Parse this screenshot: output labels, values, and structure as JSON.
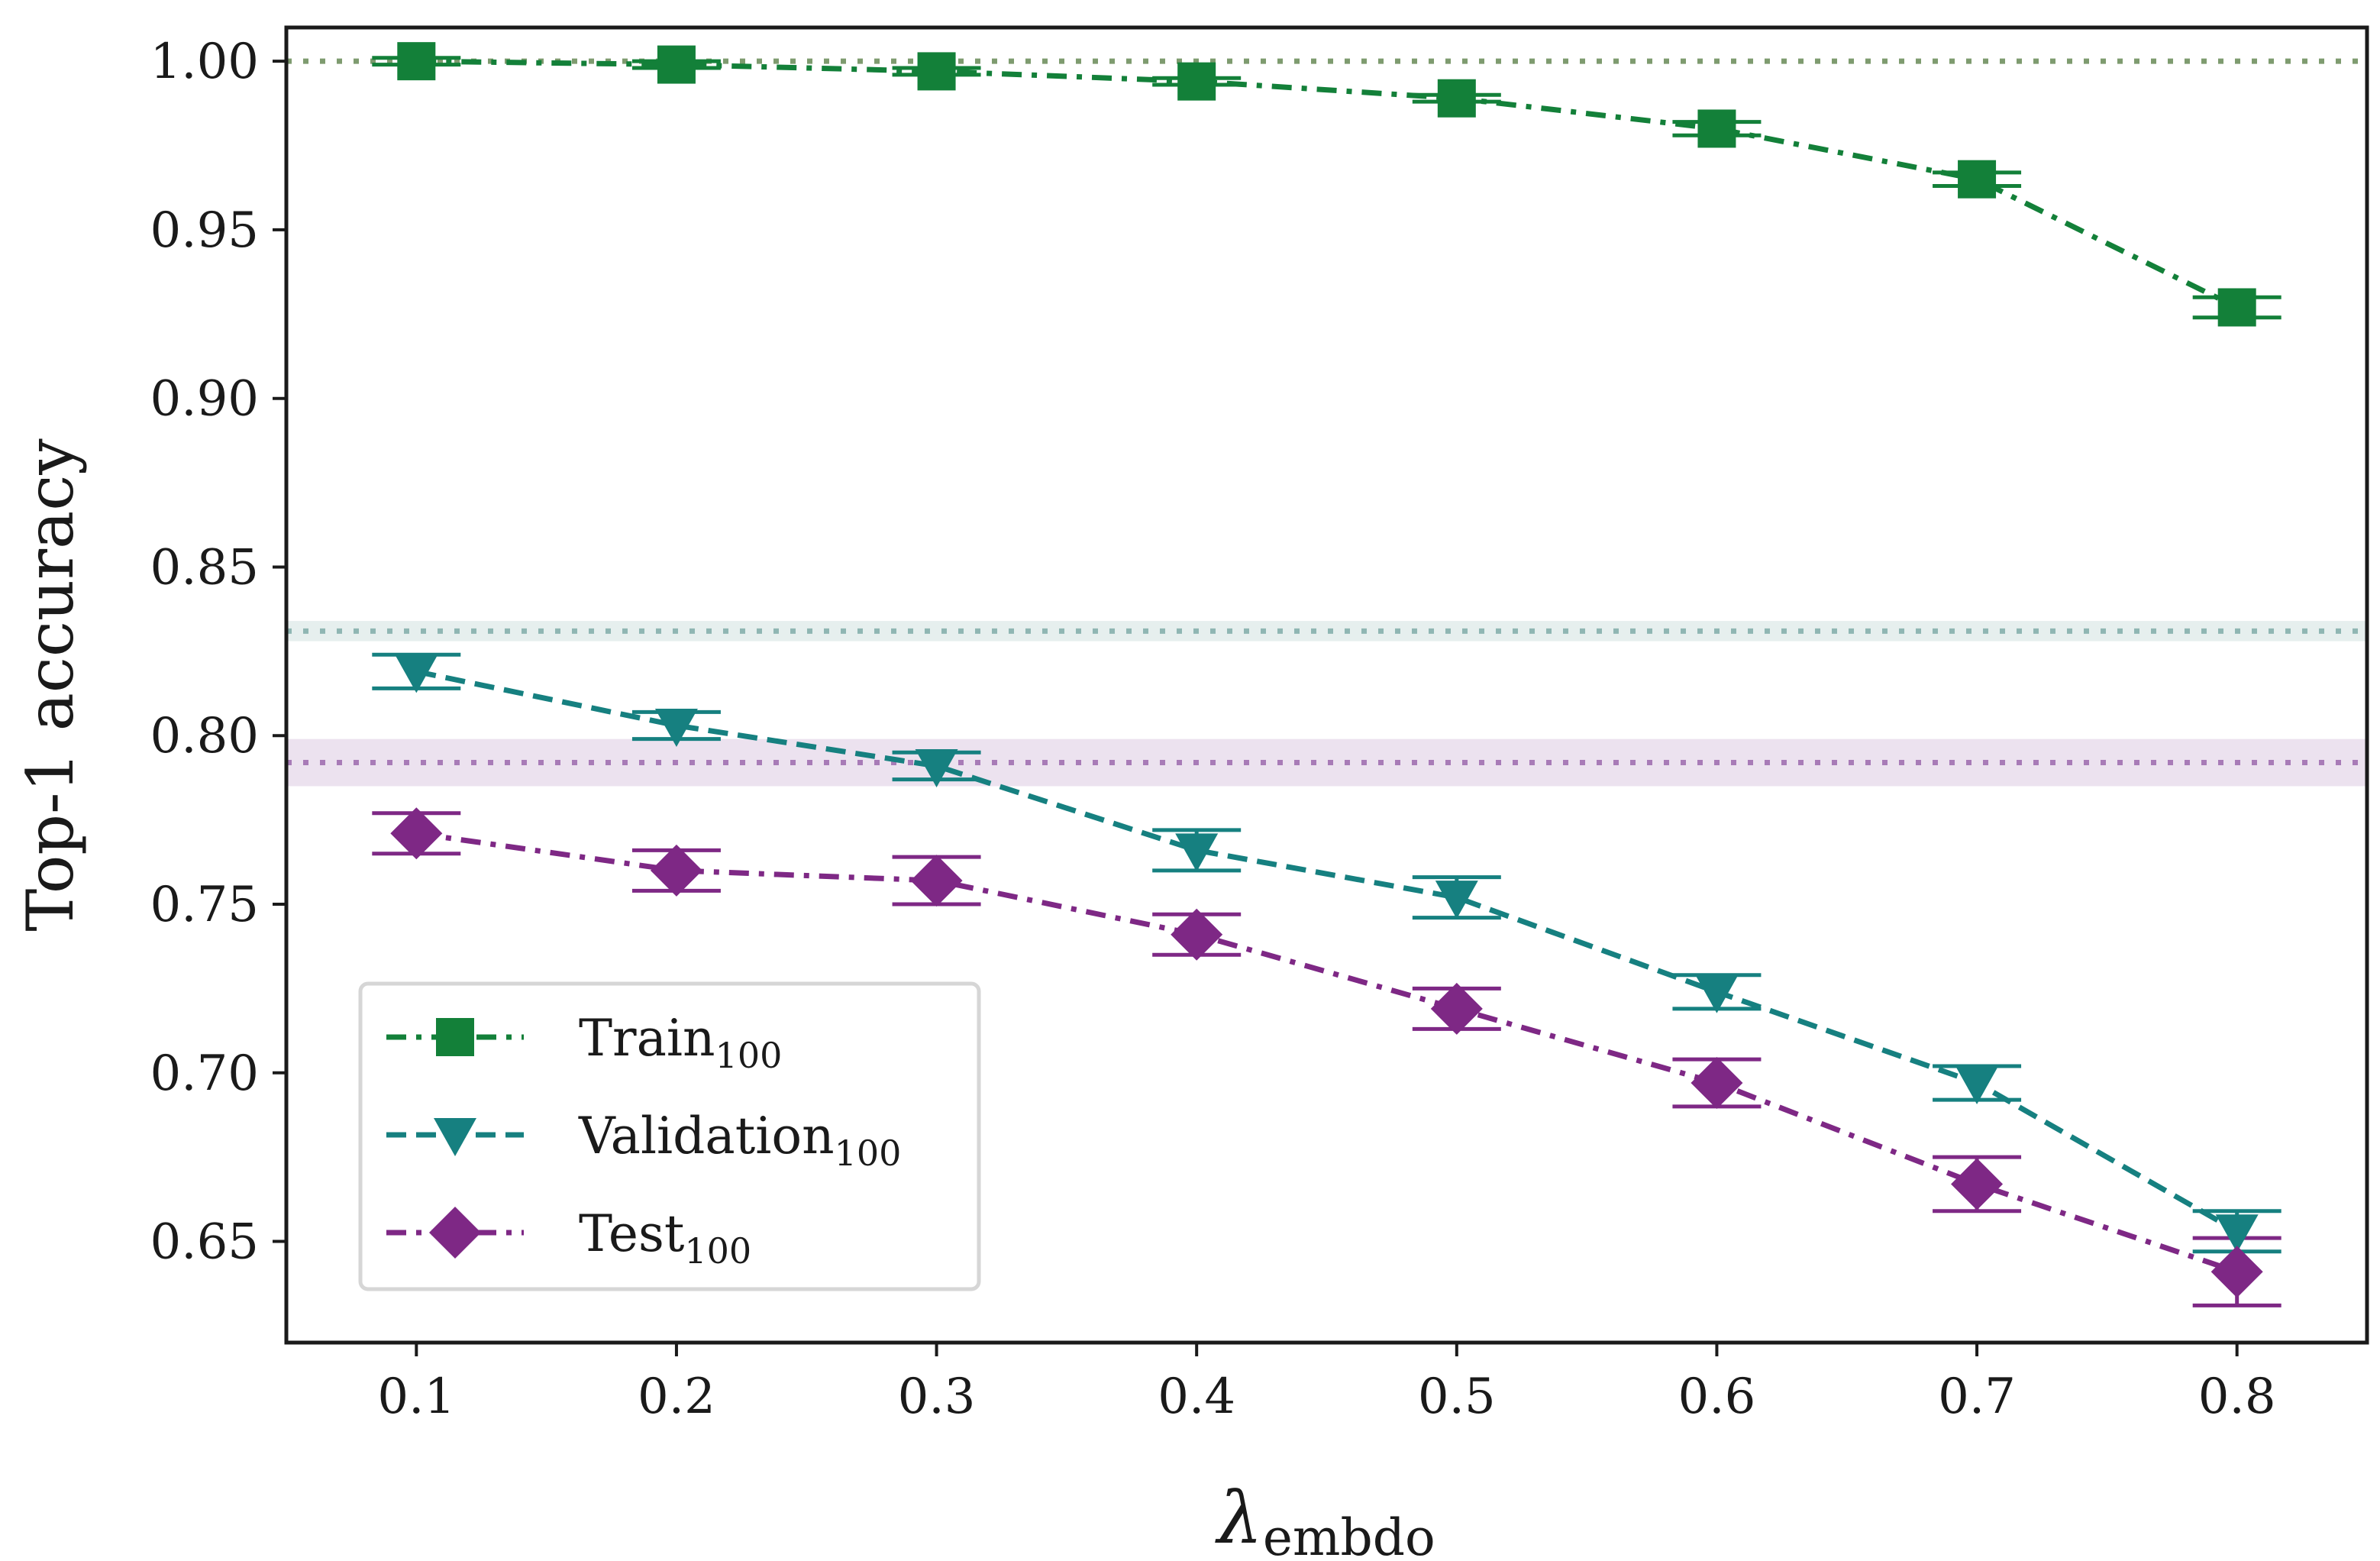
{
  "chart_data": {
    "type": "line",
    "title": "",
    "xlabel": "λ",
    "xlabel_sub": "embdo",
    "ylabel": "Top-1 accuracy",
    "x": [
      0.1,
      0.2,
      0.3,
      0.4,
      0.5,
      0.6,
      0.7,
      0.8
    ],
    "x_tick_labels": [
      "0.1",
      "0.2",
      "0.3",
      "0.4",
      "0.5",
      "0.6",
      "0.7",
      "0.8"
    ],
    "y_ticks": [
      0.65,
      0.7,
      0.75,
      0.8,
      0.85,
      0.9,
      0.95,
      1.0
    ],
    "y_tick_labels": [
      "0.65",
      "0.70",
      "0.75",
      "0.80",
      "0.85",
      "0.90",
      "0.95",
      "1.00"
    ],
    "xlim": [
      0.05,
      0.85
    ],
    "ylim": [
      0.62,
      1.01
    ],
    "grid": false,
    "legend_position": "lower-left",
    "series": [
      {
        "name": "Train",
        "name_sub": "100",
        "color": "#138039",
        "linestyle": "dashdot",
        "marker": "square",
        "values": [
          1.0,
          0.999,
          0.997,
          0.994,
          0.989,
          0.98,
          0.965,
          0.927
        ],
        "errors": [
          0.001,
          0.001,
          0.001,
          0.001,
          0.001,
          0.002,
          0.002,
          0.003
        ]
      },
      {
        "name": "Validation",
        "name_sub": "100",
        "color": "#168080",
        "linestyle": "dashed",
        "marker": "triangle-down",
        "values": [
          0.819,
          0.803,
          0.791,
          0.766,
          0.752,
          0.724,
          0.697,
          0.653
        ],
        "errors": [
          0.005,
          0.004,
          0.004,
          0.006,
          0.006,
          0.005,
          0.005,
          0.006
        ]
      },
      {
        "name": "Test",
        "name_sub": "100",
        "color": "#7e2885",
        "linestyle": "dashdot",
        "marker": "diamond",
        "values": [
          0.771,
          0.76,
          0.757,
          0.741,
          0.719,
          0.697,
          0.667,
          0.641
        ],
        "errors": [
          0.006,
          0.006,
          0.007,
          0.006,
          0.006,
          0.007,
          0.008,
          0.01
        ]
      }
    ],
    "reference_lines": [
      {
        "name": "train-baseline",
        "value": 1.0,
        "band": 0.0,
        "color": "#7e9b6f"
      },
      {
        "name": "validation-baseline",
        "value": 0.831,
        "band": 0.003,
        "color": "#8fb6b3"
      },
      {
        "name": "test-baseline",
        "value": 0.792,
        "band": 0.007,
        "color": "#a87bb7"
      }
    ]
  }
}
